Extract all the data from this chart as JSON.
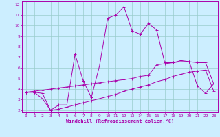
{
  "xlabel": "Windchill (Refroidissement éolien,°C)",
  "bg_color": "#cceeff",
  "line_color": "#aa00aa",
  "grid_color": "#99cccc",
  "x": [
    0,
    1,
    2,
    3,
    4,
    5,
    6,
    7,
    8,
    9,
    10,
    11,
    12,
    13,
    14,
    15,
    16,
    17,
    18,
    19,
    20,
    21,
    22,
    23
  ],
  "y_main": [
    3.7,
    3.7,
    3.6,
    2.0,
    2.5,
    2.5,
    7.3,
    4.8,
    3.2,
    6.2,
    10.7,
    11.0,
    11.8,
    9.5,
    9.2,
    10.2,
    9.6,
    6.5,
    6.5,
    6.7,
    6.6,
    4.3,
    3.6,
    4.5
  ],
  "y_upper": [
    3.7,
    3.8,
    3.9,
    4.0,
    4.1,
    4.2,
    4.3,
    4.4,
    4.5,
    4.6,
    4.7,
    4.8,
    4.9,
    5.0,
    5.2,
    5.3,
    6.3,
    6.4,
    6.5,
    6.6,
    6.6,
    6.5,
    6.5,
    4.5
  ],
  "y_lower": [
    3.7,
    3.7,
    3.1,
    2.0,
    2.1,
    2.3,
    2.5,
    2.7,
    2.9,
    3.1,
    3.3,
    3.5,
    3.8,
    4.0,
    4.2,
    4.4,
    4.7,
    4.9,
    5.2,
    5.4,
    5.6,
    5.7,
    5.8,
    3.8
  ],
  "ylim": [
    1.8,
    12.3
  ],
  "xlim": [
    -0.5,
    23.5
  ],
  "yticks": [
    2,
    3,
    4,
    5,
    6,
    7,
    8,
    9,
    10,
    11,
    12
  ],
  "xticks": [
    0,
    1,
    2,
    3,
    4,
    5,
    6,
    7,
    8,
    9,
    10,
    11,
    12,
    13,
    14,
    15,
    16,
    17,
    18,
    19,
    20,
    21,
    22,
    23
  ]
}
